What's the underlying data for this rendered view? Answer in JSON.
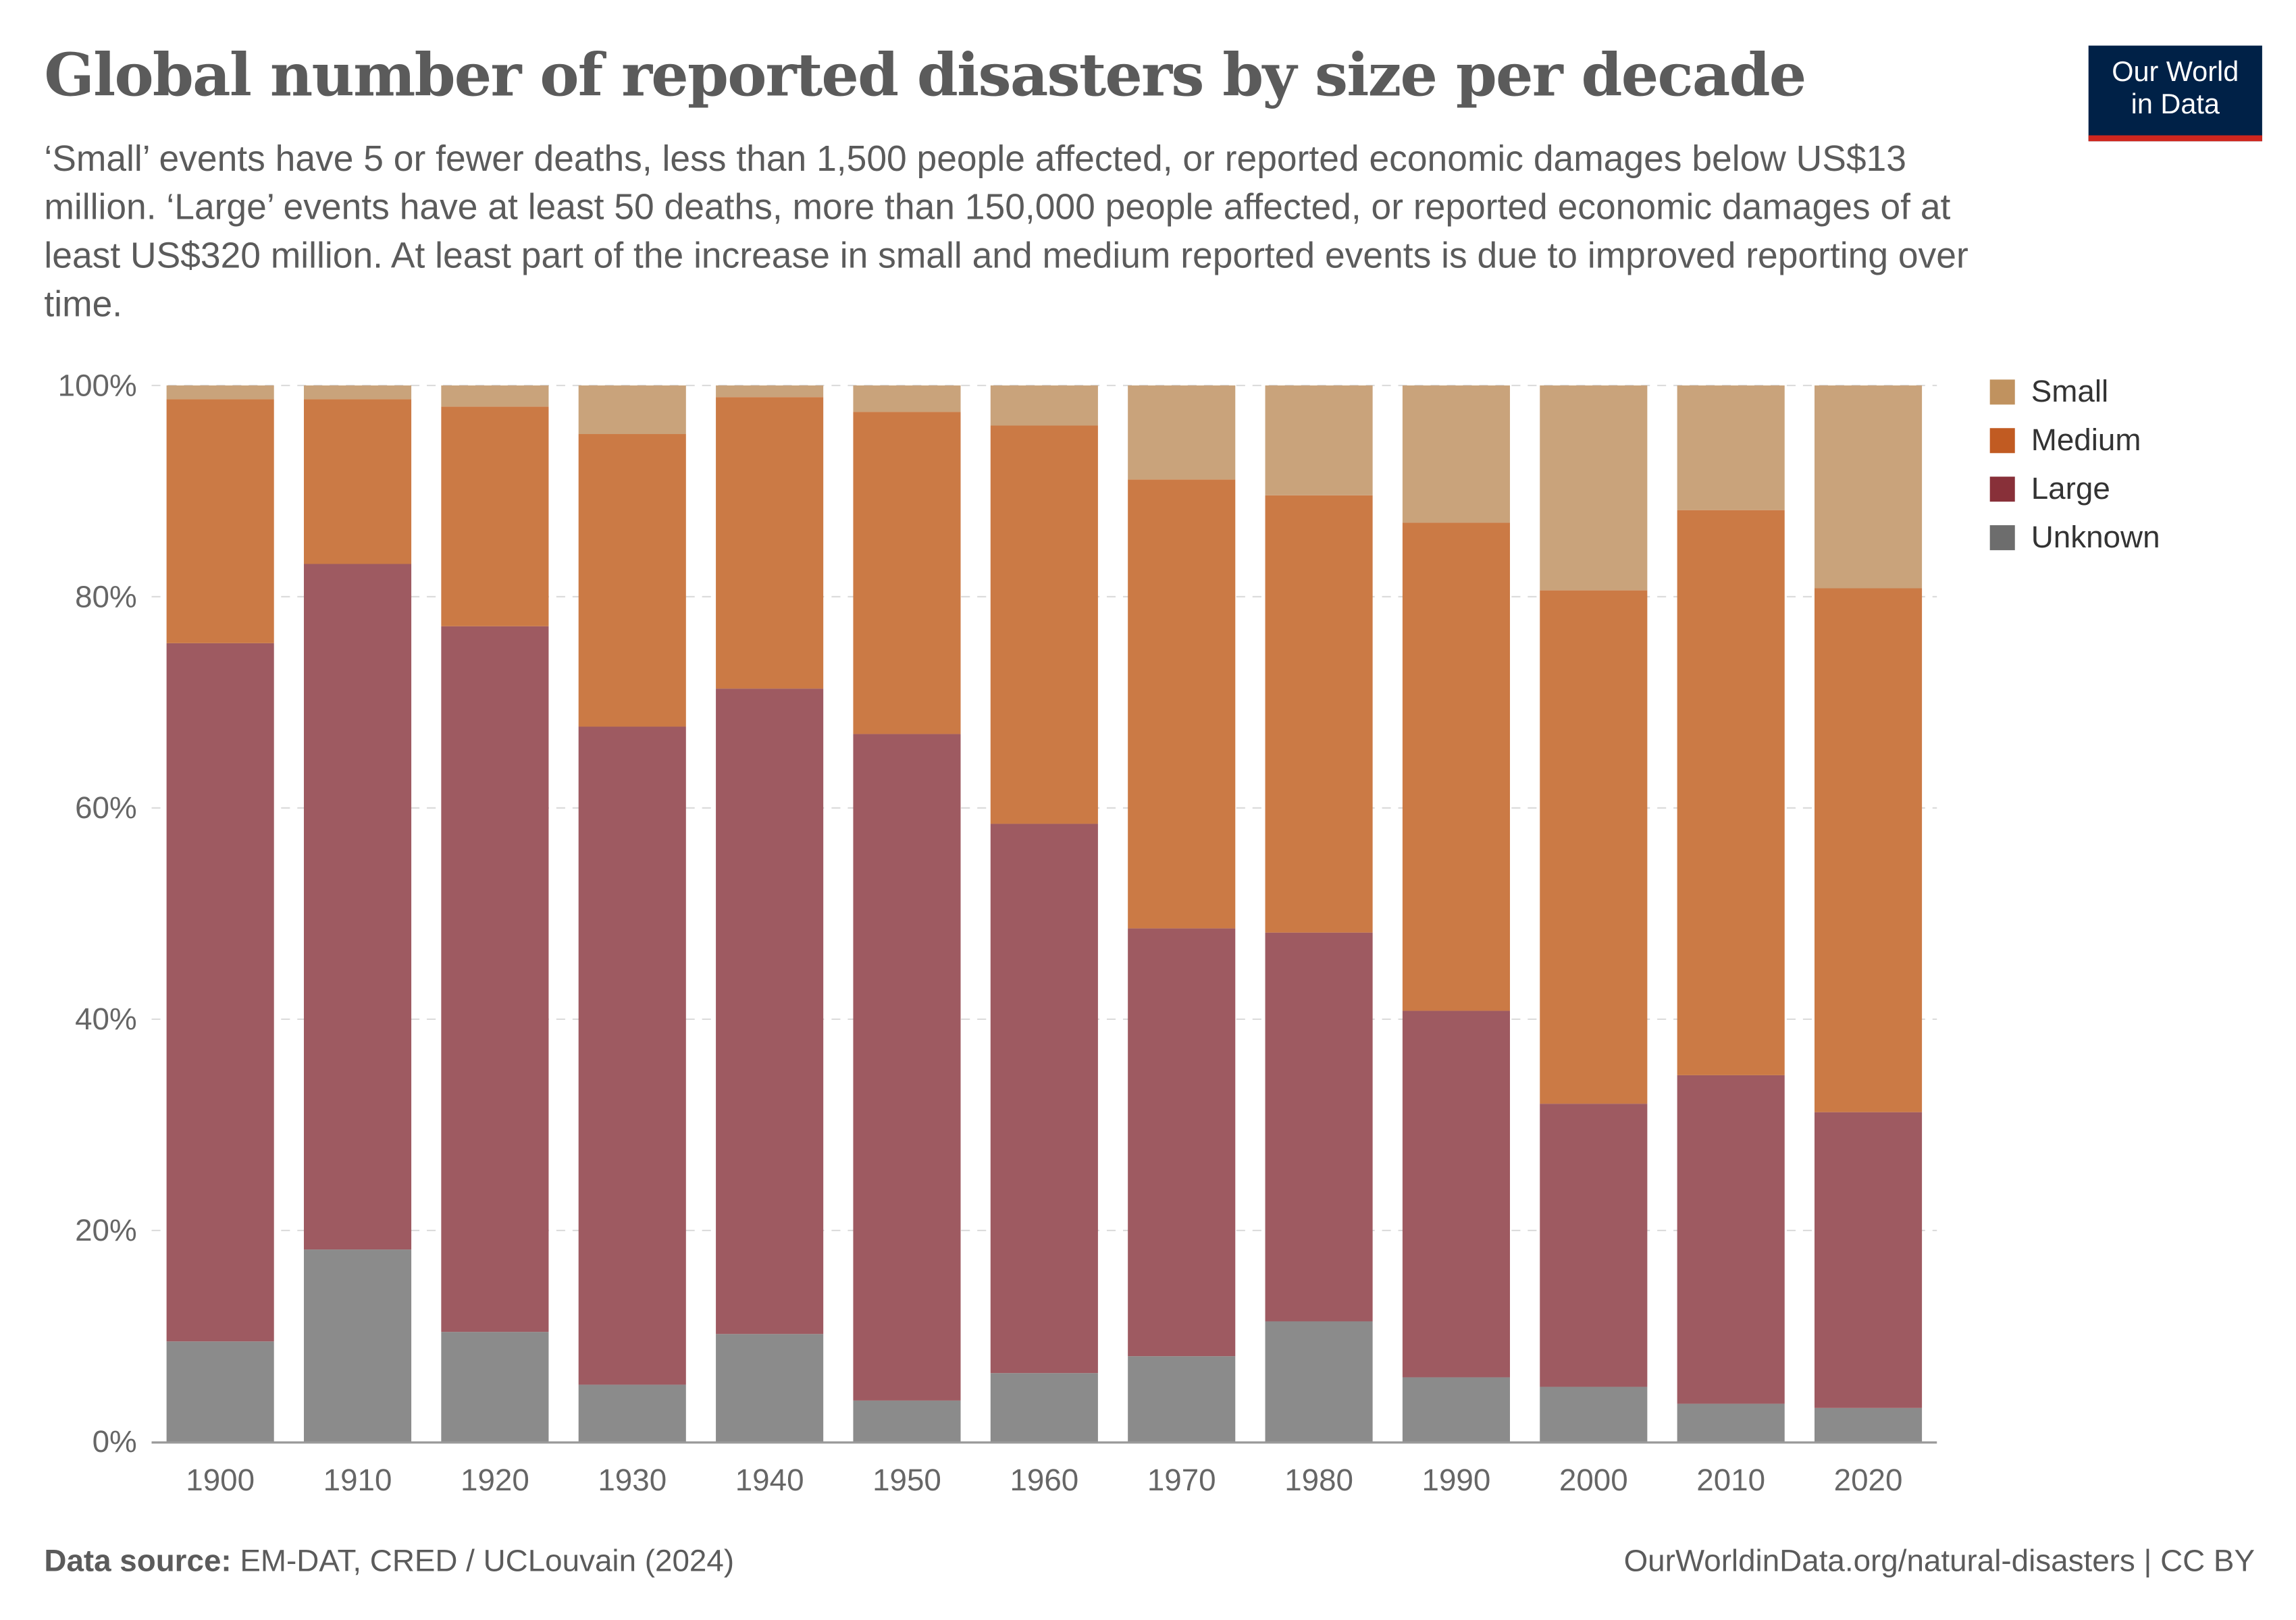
{
  "title": "Global number of reported disasters by size per decade",
  "subtitle": "‘Small’ events have 5 or fewer deaths, less than 1,500 people affected, or reported economic damages below US$13 million. ‘Large’ events have at least 50 deaths, more than 150,000 people affected, or reported economic damages of at least US$320 million. At least part of the increase in small and medium reported events is due to improved reporting over time.",
  "logo": {
    "line1": "Our World",
    "line2": "in Data"
  },
  "footer": {
    "source_label": "Data source:",
    "source": " EM-DAT, CRED / UCLouvain (2024)",
    "url": "OurWorldinData.org/natural-disasters | CC BY"
  },
  "chart_data": {
    "type": "bar",
    "stacked": true,
    "relative": true,
    "categories": [
      "1900",
      "1910",
      "1920",
      "1930",
      "1940",
      "1950",
      "1960",
      "1970",
      "1980",
      "1990",
      "2000",
      "2010",
      "2020"
    ],
    "ylim": [
      0,
      100
    ],
    "yticks": [
      "0%",
      "20%",
      "40%",
      "60%",
      "80%",
      "100%"
    ],
    "grid": true,
    "legend_position": "right",
    "series": [
      {
        "name": "Unknown",
        "color": "#8b8b8b",
        "legend_color": "#6d6d6d",
        "values": [
          9.5,
          18.2,
          10.4,
          5.4,
          10.2,
          3.9,
          6.5,
          8.1,
          11.4,
          6.1,
          5.2,
          3.6,
          3.2
        ]
      },
      {
        "name": "Large",
        "color": "#9e5a61",
        "legend_color": "#883039",
        "values": [
          66.1,
          64.9,
          66.8,
          62.3,
          61.1,
          63.1,
          52.0,
          40.5,
          36.8,
          34.7,
          26.8,
          31.1,
          28.0
        ]
      },
      {
        "name": "Medium",
        "color": "#cb7a45",
        "legend_color": "#c15b22",
        "values": [
          23.1,
          15.6,
          20.8,
          27.7,
          27.6,
          30.5,
          37.7,
          42.5,
          41.4,
          46.2,
          48.6,
          53.5,
          49.6
        ]
      },
      {
        "name": "Small",
        "color": "#c9a37b",
        "legend_color": "#c0925f",
        "values": [
          1.3,
          1.3,
          2.0,
          4.6,
          1.1,
          2.5,
          3.8,
          8.9,
          10.4,
          13.0,
          19.4,
          11.8,
          19.2
        ]
      }
    ]
  }
}
